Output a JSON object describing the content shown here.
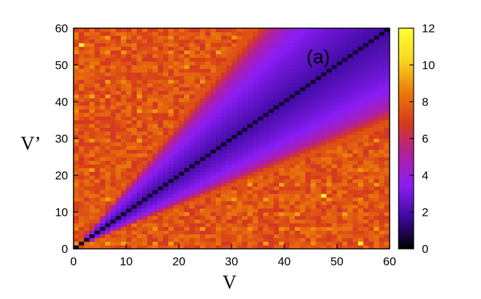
{
  "chart_data": {
    "type": "heatmap",
    "panel_label": "(a)",
    "xlabel": "V",
    "ylabel": "V’",
    "xlim": [
      0,
      60
    ],
    "ylim": [
      0,
      60
    ],
    "x_ticks": [
      "0",
      "10",
      "20",
      "30",
      "40",
      "50",
      "60"
    ],
    "y_ticks": [
      "0",
      "10",
      "20",
      "30",
      "40",
      "50",
      "60"
    ],
    "colorbar": {
      "range": [
        0,
        12
      ],
      "ticks": [
        "0",
        "2",
        "4",
        "6",
        "8",
        "10",
        "12"
      ],
      "colormap": [
        "#000000",
        "#3b0a9c",
        "#8a1df5",
        "#b01f9e",
        "#d63a1a",
        "#ec7d0a",
        "#f8d820",
        "#ffff33"
      ]
    },
    "grid": false,
    "description_values": {
      "diagonal": 0.5,
      "near_diagonal_band": 4,
      "off_diagonal_regions": 7.5,
      "max": 11.5
    }
  }
}
